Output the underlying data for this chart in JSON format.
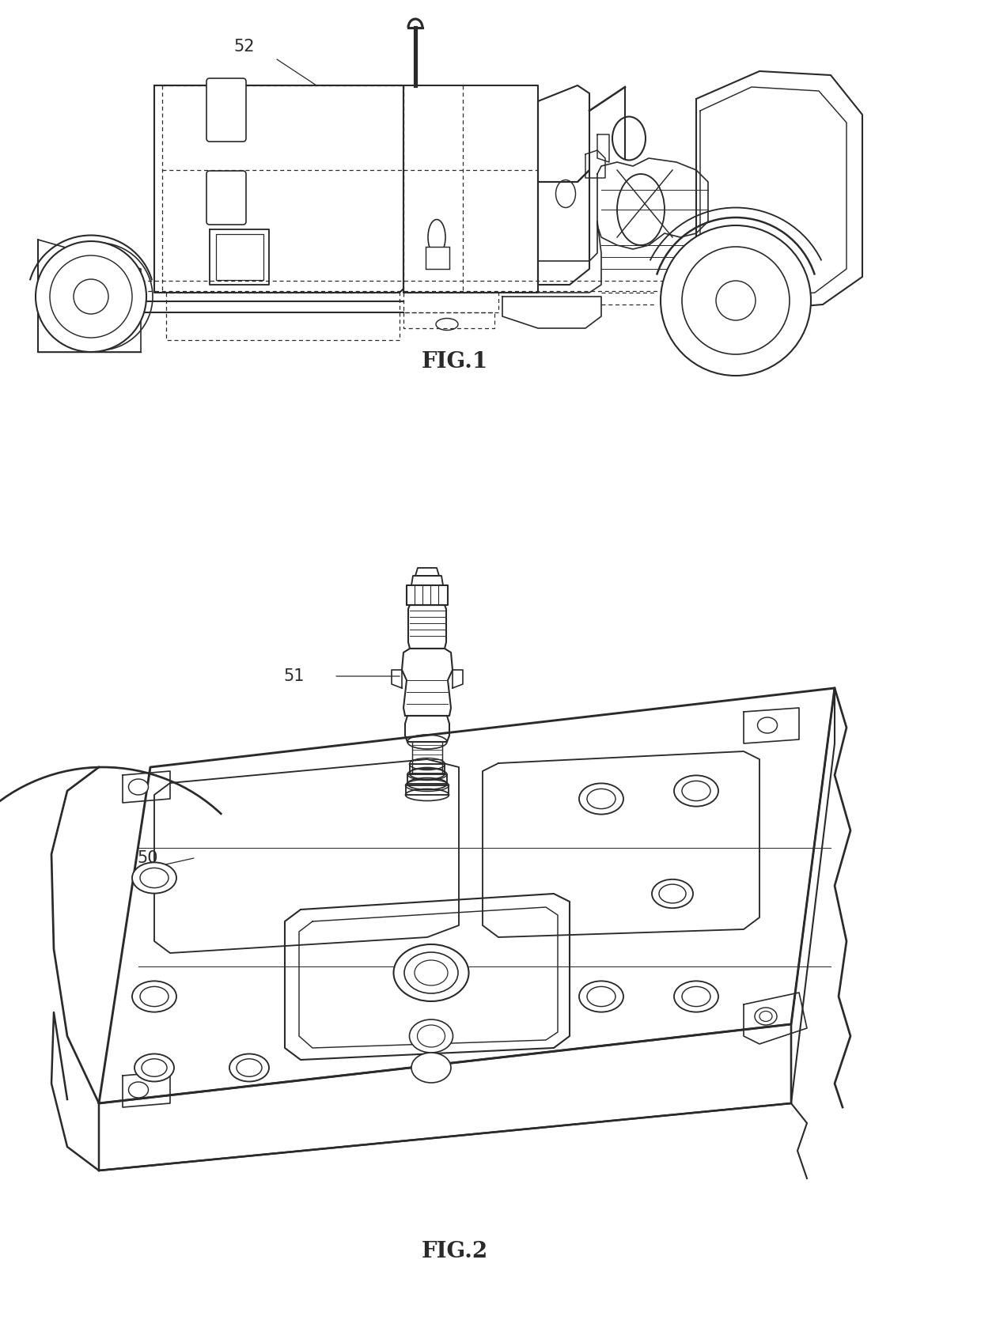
{
  "fig_width": 12.4,
  "fig_height": 16.69,
  "dpi": 100,
  "bg_color": "#ffffff",
  "line_color": "#2a2a2a",
  "line_width": 1.5,
  "dashed_lw": 0.9,
  "fig1_label": "FIG.1",
  "fig2_label": "FIG.2",
  "label_52": "52",
  "label_51": "51",
  "label_50": "50",
  "fig1_label_fontsize": 20,
  "fig2_label_fontsize": 20,
  "ref_fontsize": 15
}
